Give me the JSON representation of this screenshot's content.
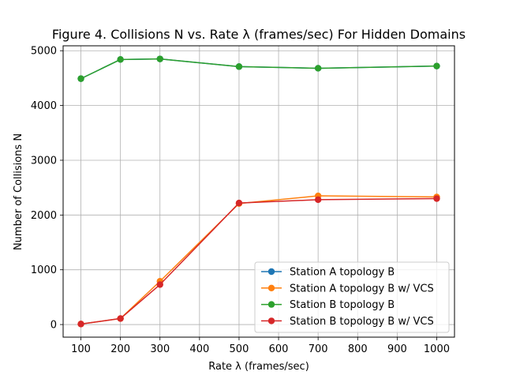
{
  "chart_data": {
    "type": "line",
    "title": "Figure 4. Collisions N vs. Rate λ (frames/sec) For Hidden Domains",
    "xlabel": "Rate λ (frames/sec)",
    "ylabel": "Number of Collisions N",
    "x": [
      100,
      200,
      300,
      500,
      700,
      1000
    ],
    "xlim": [
      55,
      1045
    ],
    "ylim": [
      -230,
      5090
    ],
    "xticks": [
      100,
      200,
      300,
      400,
      500,
      600,
      700,
      800,
      900,
      1000
    ],
    "yticks": [
      0,
      1000,
      2000,
      3000,
      4000,
      5000
    ],
    "grid": true,
    "legend_position": "lower-right",
    "series": [
      {
        "name": "Station A topology B",
        "color": "#1f77b4",
        "values": [
          4490,
          4840,
          4850,
          4710,
          4680,
          4720
        ]
      },
      {
        "name": "Station A topology B w/ VCS",
        "color": "#ff7f0e",
        "values": [
          10,
          110,
          790,
          2210,
          2350,
          2330
        ]
      },
      {
        "name": "Station B topology B",
        "color": "#2ca02c",
        "values": [
          4490,
          4840,
          4850,
          4710,
          4680,
          4720
        ]
      },
      {
        "name": "Station B topology B w/ VCS",
        "color": "#d62728",
        "values": [
          10,
          110,
          730,
          2220,
          2280,
          2300
        ]
      }
    ]
  }
}
